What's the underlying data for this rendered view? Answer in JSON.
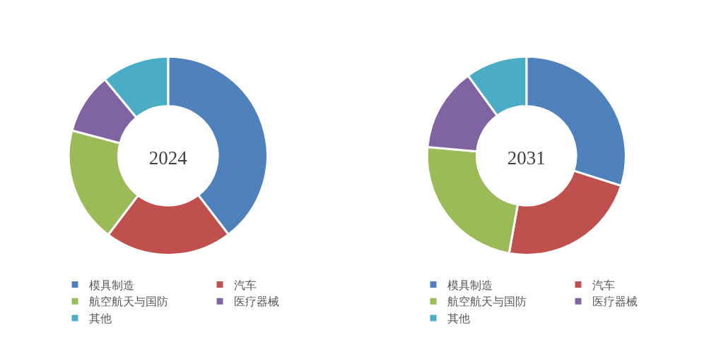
{
  "chart_data": [
    {
      "type": "donut",
      "title": "2024",
      "categories": [
        "模具制造",
        "汽车",
        "航空航天与国防",
        "医疗器械",
        "其他"
      ],
      "values": [
        39.6,
        20.7,
        18.8,
        9.9,
        11.0
      ],
      "colors": [
        "#4f81bd",
        "#c0504d",
        "#9bbb59",
        "#8064a2",
        "#4bacc6"
      ],
      "legend": "bottom"
    },
    {
      "type": "donut",
      "title": "2031",
      "categories": [
        "模具制造",
        "汽车",
        "航空航天与国防",
        "医疗器械",
        "其他"
      ],
      "values": [
        29.9,
        22.9,
        23.6,
        13.6,
        10.0
      ],
      "colors": [
        "#4f81bd",
        "#c0504d",
        "#9bbb59",
        "#8064a2",
        "#4bacc6"
      ],
      "legend": "bottom"
    }
  ]
}
